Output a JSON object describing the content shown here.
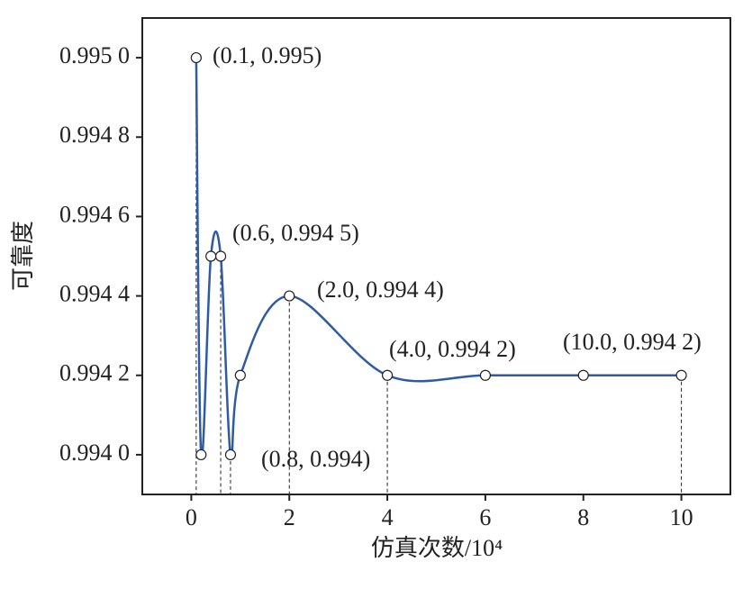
{
  "chart_data": {
    "type": "line",
    "x_label": "仿真次数/10⁴",
    "y_label": "可靠度",
    "x": [
      0.1,
      0.2,
      0.4,
      0.6,
      0.8,
      1.0,
      2.0,
      4.0,
      6.0,
      8.0,
      10.0
    ],
    "series": [
      {
        "color": "#2e5aa6",
        "values": [
          0.995,
          0.994,
          0.9945,
          0.9945,
          0.994,
          0.9942,
          0.9944,
          0.9942,
          0.9942,
          0.9942,
          0.9942
        ]
      }
    ],
    "xlim": [
      -1,
      11
    ],
    "xticks": [
      0,
      2,
      4,
      6,
      8,
      10
    ],
    "ylim": [
      0.9939,
      0.9951
    ],
    "yticks": [
      {
        "value": 0.994,
        "label": "0.994 0"
      },
      {
        "value": 0.9942,
        "label": "0.994 2"
      },
      {
        "value": 0.9944,
        "label": "0.994 4"
      },
      {
        "value": 0.9946,
        "label": "0.994 6"
      },
      {
        "value": 0.9948,
        "label": "0.994 8"
      },
      {
        "value": 0.995,
        "label": "0.995 0"
      }
    ],
    "annotations": [
      "(0.1, 0.995)",
      "(0.6, 0.994 5)",
      "(2.0, 0.994 4)",
      "(0.8, 0.994)",
      "(4.0, 0.994 2)",
      "(10.0, 0.994 2)"
    ]
  }
}
